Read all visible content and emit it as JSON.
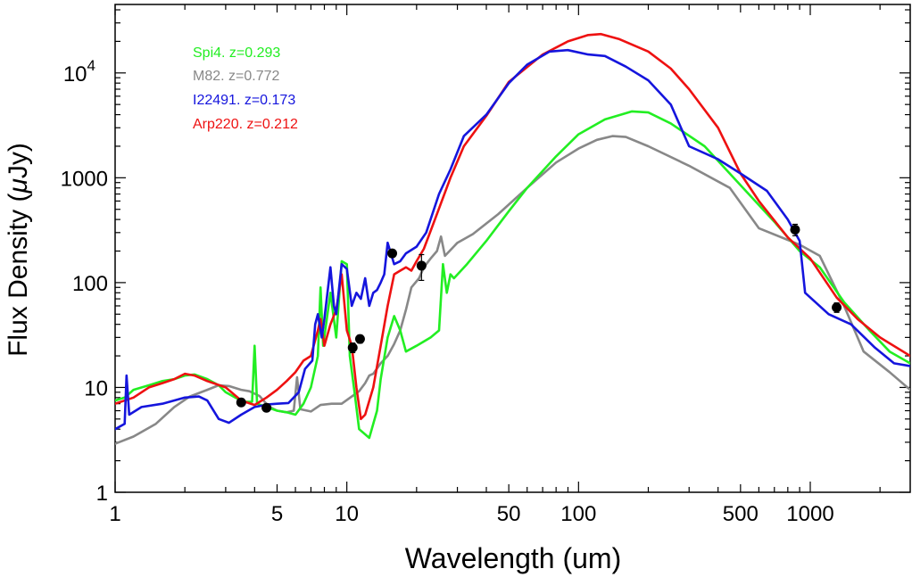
{
  "chart_data": {
    "type": "line",
    "title": "",
    "xlabel": "Wavelength (um)",
    "ylabel_main": "Flux Density (",
    "ylabel_mu": "μ",
    "ylabel_tail": "Jy)",
    "xscale": "log",
    "yscale": "log",
    "xlim": [
      1,
      2700
    ],
    "ylim": [
      1,
      45000
    ],
    "x_ticks": [
      {
        "value": 1,
        "label": "1"
      },
      {
        "value": 5,
        "label": "5"
      },
      {
        "value": 10,
        "label": "10"
      },
      {
        "value": 50,
        "label": "50"
      },
      {
        "value": 100,
        "label": "100"
      },
      {
        "value": 500,
        "label": "500"
      },
      {
        "value": 1000,
        "label": "1000"
      }
    ],
    "y_ticks": [
      {
        "value": 1,
        "label": "1"
      },
      {
        "value": 10,
        "label": "10"
      },
      {
        "value": 100,
        "label": "100"
      },
      {
        "value": 1000,
        "label": "1000"
      },
      {
        "value": 10000,
        "label": "10",
        "sup": "4"
      }
    ],
    "legend": [
      {
        "label": "Spi4.  z=0.293",
        "color": "#22ee22"
      },
      {
        "label": "M82.  z=0.772",
        "color": "#888888"
      },
      {
        "label": "I22491.  z=0.173",
        "color": "#1515dd"
      },
      {
        "label": "Arp220.  z=0.212",
        "color": "#ee1111"
      }
    ],
    "series": [
      {
        "name": "M82",
        "color": "#888888",
        "points": [
          [
            1.0,
            2.9
          ],
          [
            1.2,
            3.4
          ],
          [
            1.5,
            4.5
          ],
          [
            1.8,
            6.5
          ],
          [
            2.1,
            8.2
          ],
          [
            2.5,
            9.5
          ],
          [
            2.8,
            10.5
          ],
          [
            3.1,
            10.3
          ],
          [
            3.5,
            9.5
          ],
          [
            3.8,
            9.2
          ],
          [
            4.2,
            8.3
          ],
          [
            4.6,
            6.6
          ],
          [
            5.0,
            6.0
          ],
          [
            5.5,
            5.8
          ],
          [
            5.9,
            6.0
          ],
          [
            6.1,
            12.5
          ],
          [
            6.3,
            6.2
          ],
          [
            7.0,
            5.9
          ],
          [
            7.7,
            6.8
          ],
          [
            8.6,
            7.0
          ],
          [
            9.5,
            7.0
          ],
          [
            11.3,
            9.2
          ],
          [
            12.0,
            11.0
          ],
          [
            12.5,
            13.0
          ],
          [
            13.0,
            13.5
          ],
          [
            14.0,
            17.0
          ],
          [
            15.0,
            20.0
          ],
          [
            16.0,
            26.0
          ],
          [
            17.0,
            35.0
          ],
          [
            18.0,
            55.0
          ],
          [
            19.0,
            90.0
          ],
          [
            20.5,
            110.0
          ],
          [
            21.5,
            140.0
          ],
          [
            23.0,
            170.0
          ],
          [
            24.5,
            200.0
          ],
          [
            25.5,
            275.0
          ],
          [
            26.5,
            180.0
          ],
          [
            30.0,
            240.0
          ],
          [
            35.0,
            290.0
          ],
          [
            45.0,
            450.0
          ],
          [
            60.0,
            800.0
          ],
          [
            80.0,
            1400.0
          ],
          [
            100.0,
            1900.0
          ],
          [
            120.0,
            2300.0
          ],
          [
            140.0,
            2500.0
          ],
          [
            160.0,
            2450.0
          ],
          [
            200.0,
            2000.0
          ],
          [
            300.0,
            1300.0
          ],
          [
            450.0,
            800.0
          ],
          [
            600.0,
            330.0
          ],
          [
            900.0,
            230.0
          ],
          [
            1100.0,
            180.0
          ],
          [
            1400.0,
            60.0
          ],
          [
            1700.0,
            22.0
          ],
          [
            2200.0,
            14.0
          ],
          [
            2700.0,
            9.5
          ]
        ]
      },
      {
        "name": "Spi4",
        "color": "#22ee22",
        "points": [
          [
            1.0,
            7.5
          ],
          [
            1.1,
            8.0
          ],
          [
            1.2,
            9.5
          ],
          [
            1.4,
            10.5
          ],
          [
            1.6,
            11.5
          ],
          [
            1.8,
            12.0
          ],
          [
            2.0,
            13.0
          ],
          [
            2.2,
            13.3
          ],
          [
            2.5,
            12.0
          ],
          [
            2.8,
            10.5
          ],
          [
            3.0,
            9.0
          ],
          [
            3.3,
            8.0
          ],
          [
            3.6,
            7.3
          ],
          [
            3.9,
            7.3
          ],
          [
            4.0,
            25.0
          ],
          [
            4.1,
            7.0
          ],
          [
            4.5,
            6.5
          ],
          [
            5.0,
            6.0
          ],
          [
            5.5,
            5.8
          ],
          [
            6.0,
            5.5
          ],
          [
            6.5,
            7.0
          ],
          [
            7.0,
            10.0
          ],
          [
            7.5,
            20.0
          ],
          [
            7.7,
            90.0
          ],
          [
            7.9,
            25.0
          ],
          [
            8.5,
            80.0
          ],
          [
            9.0,
            30.0
          ],
          [
            9.5,
            160.0
          ],
          [
            10.0,
            150.0
          ],
          [
            10.3,
            20.0
          ],
          [
            10.8,
            9.0
          ],
          [
            11.3,
            4.0
          ],
          [
            12.5,
            3.3
          ],
          [
            13.5,
            6.0
          ],
          [
            14.0,
            12.0
          ],
          [
            15.0,
            30.0
          ],
          [
            16.0,
            48.0
          ],
          [
            17.0,
            35.0
          ],
          [
            18.0,
            22.0
          ],
          [
            20.0,
            25.0
          ],
          [
            23.0,
            30.0
          ],
          [
            25.0,
            35.0
          ],
          [
            26.0,
            150.0
          ],
          [
            27.0,
            80.0
          ],
          [
            28.0,
            120.0
          ],
          [
            29.0,
            110.0
          ],
          [
            33.0,
            150.0
          ],
          [
            40.0,
            250.0
          ],
          [
            50.0,
            480.0
          ],
          [
            60.0,
            800.0
          ],
          [
            80.0,
            1600.0
          ],
          [
            100.0,
            2600.0
          ],
          [
            130.0,
            3600.0
          ],
          [
            170.0,
            4300.0
          ],
          [
            200.0,
            4200.0
          ],
          [
            250.0,
            3300.0
          ],
          [
            350.0,
            2000.0
          ],
          [
            500.0,
            850.0
          ],
          [
            700.0,
            380.0
          ],
          [
            900.0,
            200.0
          ],
          [
            1100.0,
            140.0
          ],
          [
            1400.0,
            65.0
          ],
          [
            1800.0,
            35.0
          ],
          [
            2200.0,
            22.0
          ],
          [
            2700.0,
            17.0
          ]
        ]
      },
      {
        "name": "Arp220",
        "color": "#ee1111",
        "points": [
          [
            1.0,
            7.0
          ],
          [
            1.2,
            8.0
          ],
          [
            1.4,
            10.0
          ],
          [
            1.6,
            11.0
          ],
          [
            1.8,
            12.0
          ],
          [
            2.0,
            13.5
          ],
          [
            2.2,
            13.0
          ],
          [
            2.5,
            11.5
          ],
          [
            3.0,
            10.0
          ],
          [
            3.5,
            7.5
          ],
          [
            4.0,
            6.8
          ],
          [
            4.5,
            8.0
          ],
          [
            5.0,
            9.5
          ],
          [
            5.5,
            11.5
          ],
          [
            6.0,
            14.0
          ],
          [
            6.5,
            18.0
          ],
          [
            7.0,
            20.0
          ],
          [
            7.5,
            35.0
          ],
          [
            7.7,
            45.0
          ],
          [
            8.0,
            25.0
          ],
          [
            8.5,
            40.0
          ],
          [
            9.0,
            55.0
          ],
          [
            9.5,
            120.0
          ],
          [
            10.0,
            35.0
          ],
          [
            10.5,
            25.0
          ],
          [
            11.0,
            10.0
          ],
          [
            11.5,
            5.0
          ],
          [
            12.0,
            5.5
          ],
          [
            13.0,
            10.0
          ],
          [
            14.0,
            25.0
          ],
          [
            15.0,
            60.0
          ],
          [
            16.0,
            120.0
          ],
          [
            17.0,
            130.0
          ],
          [
            18.0,
            140.0
          ],
          [
            19.0,
            130.0
          ],
          [
            20.0,
            160.0
          ],
          [
            21.5,
            210.0
          ],
          [
            24.0,
            400.0
          ],
          [
            28.0,
            1000.0
          ],
          [
            32.0,
            2000.0
          ],
          [
            40.0,
            3900.0
          ],
          [
            50.0,
            8200.0
          ],
          [
            70.0,
            15000.0
          ],
          [
            90.0,
            20000.0
          ],
          [
            110.0,
            23000.0
          ],
          [
            125.0,
            23500.0
          ],
          [
            150.0,
            21000.0
          ],
          [
            200.0,
            16000.0
          ],
          [
            250.0,
            11000.0
          ],
          [
            300.0,
            7000.0
          ],
          [
            400.0,
            3000.0
          ],
          [
            500.0,
            1100.0
          ],
          [
            600.0,
            600.0
          ],
          [
            800.0,
            270.0
          ],
          [
            1000.0,
            170.0
          ],
          [
            1300.0,
            72.0
          ],
          [
            1600.0,
            45.0
          ],
          [
            2000.0,
            30.0
          ],
          [
            2700.0,
            20.0
          ]
        ]
      },
      {
        "name": "I22491",
        "color": "#1515dd",
        "points": [
          [
            1.0,
            4.0
          ],
          [
            1.1,
            4.5
          ],
          [
            1.12,
            13.0
          ],
          [
            1.15,
            5.5
          ],
          [
            1.3,
            6.5
          ],
          [
            1.6,
            7.0
          ],
          [
            2.0,
            8.0
          ],
          [
            2.3,
            8.2
          ],
          [
            2.5,
            7.5
          ],
          [
            2.8,
            5.0
          ],
          [
            3.1,
            4.6
          ],
          [
            3.5,
            5.5
          ],
          [
            4.0,
            6.5
          ],
          [
            4.6,
            6.9
          ],
          [
            5.0,
            7.0
          ],
          [
            5.6,
            7.1
          ],
          [
            6.2,
            9.0
          ],
          [
            6.6,
            15.0
          ],
          [
            7.1,
            18.0
          ],
          [
            7.3,
            40.0
          ],
          [
            7.5,
            50.0
          ],
          [
            7.8,
            30.0
          ],
          [
            8.0,
            45.0
          ],
          [
            8.5,
            140.0
          ],
          [
            8.8,
            60.0
          ],
          [
            9.0,
            50.0
          ],
          [
            9.5,
            150.0
          ],
          [
            10.0,
            135.0
          ],
          [
            10.5,
            60.0
          ],
          [
            11.0,
            80.0
          ],
          [
            11.5,
            70.0
          ],
          [
            12.0,
            110.0
          ],
          [
            12.5,
            60.0
          ],
          [
            13.0,
            80.0
          ],
          [
            13.5,
            85.0
          ],
          [
            14.0,
            100.0
          ],
          [
            14.5,
            120.0
          ],
          [
            15.0,
            240.0
          ],
          [
            16.0,
            150.0
          ],
          [
            17.0,
            160.0
          ],
          [
            18.0,
            190.0
          ],
          [
            20.0,
            220.0
          ],
          [
            22.0,
            300.0
          ],
          [
            25.0,
            700.0
          ],
          [
            28.0,
            1200.0
          ],
          [
            32.0,
            2500.0
          ],
          [
            40.0,
            4000.0
          ],
          [
            50.0,
            8000.0
          ],
          [
            60.0,
            12000.0
          ],
          [
            75.0,
            16000.0
          ],
          [
            90.0,
            16500.0
          ],
          [
            110.0,
            15000.0
          ],
          [
            130.0,
            14500.0
          ],
          [
            160.0,
            11500.0
          ],
          [
            200.0,
            8500.0
          ],
          [
            250.0,
            5000.0
          ],
          [
            300.0,
            2000.0
          ],
          [
            400.0,
            1500.0
          ],
          [
            500.0,
            1100.0
          ],
          [
            650.0,
            750.0
          ],
          [
            800.0,
            400.0
          ],
          [
            900.0,
            250.0
          ],
          [
            950.0,
            80.0
          ],
          [
            1200.0,
            50.0
          ],
          [
            1500.0,
            40.0
          ],
          [
            1900.0,
            24.0
          ],
          [
            2300.0,
            17.0
          ],
          [
            2700.0,
            16.0
          ]
        ]
      }
    ],
    "points": [
      {
        "x": 3.5,
        "y": 7.2,
        "err": 0.5
      },
      {
        "x": 4.5,
        "y": 6.4,
        "err": 0.4
      },
      {
        "x": 10.6,
        "y": 24.0,
        "err": 2.5
      },
      {
        "x": 11.4,
        "y": 29.0,
        "err": 2.5
      },
      {
        "x": 15.7,
        "y": 190.0,
        "err": 15.0
      },
      {
        "x": 21.0,
        "y": 145.0,
        "err": 40.0
      },
      {
        "x": 860.0,
        "y": 320.0,
        "err": 40.0
      },
      {
        "x": 1300.0,
        "y": 58.0,
        "err": 6.0
      }
    ]
  }
}
